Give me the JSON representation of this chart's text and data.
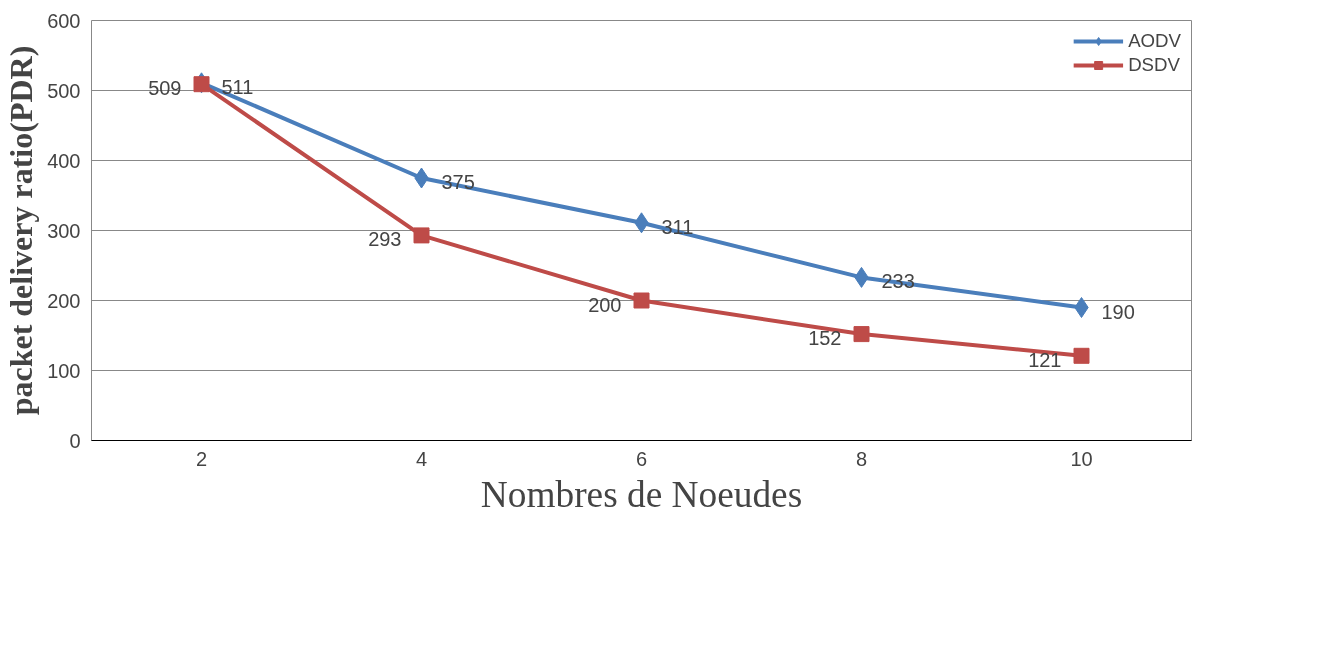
{
  "chart_data": {
    "type": "line",
    "xlabel": "Nombres de Noeudes",
    "ylabel": "packet delivery ratio(PDR)",
    "categories": [
      "2",
      "4",
      "6",
      "8",
      "10"
    ],
    "series": [
      {
        "name": "AODV",
        "color": "#4a7ebb",
        "marker": "diamond",
        "values": [
          511,
          375,
          311,
          233,
          190
        ]
      },
      {
        "name": "DSDV",
        "color": "#be4b48",
        "marker": "square",
        "values": [
          509,
          293,
          200,
          152,
          121
        ]
      }
    ],
    "ylim": [
      0,
      600
    ],
    "yticks": [
      0,
      100,
      200,
      300,
      400,
      500,
      600
    ],
    "grid": "y",
    "legend": "top right",
    "data_labels": true,
    "line_style": "solid"
  }
}
